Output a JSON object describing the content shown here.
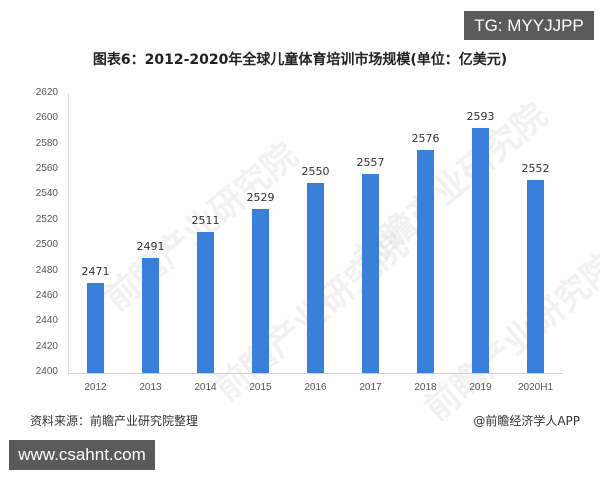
{
  "badges": {
    "top_right": "TG: MYYJJPP",
    "bottom_left": "www.csahnt.com"
  },
  "watermark": "前瞻产业研究院",
  "footer": {
    "source": "资料来源：前瞻产业研究院整理",
    "credit": "@前瞻经济学人APP"
  },
  "colors": {
    "bar": "#3a7fd9",
    "badge_bg": "#5a5a5a"
  },
  "chart_data": {
    "type": "bar",
    "title": "图表6：2012-2020年全球儿童体育培训市场规模(单位：亿美元)",
    "xlabel": "",
    "ylabel": "",
    "ylim": [
      2400,
      2620
    ],
    "yticks": [
      "2620",
      "2600",
      "2580",
      "2560",
      "2540",
      "2520",
      "2500",
      "2480",
      "2460",
      "2440",
      "2420",
      "2400"
    ],
    "categories": [
      "2012",
      "2013",
      "2014",
      "2015",
      "2016",
      "2017",
      "2018",
      "2019",
      "2020H1"
    ],
    "values": [
      2471,
      2491,
      2511,
      2529,
      2550,
      2557,
      2576,
      2593,
      2552
    ],
    "data_labels": [
      "2471",
      "2491",
      "2511",
      "2529",
      "2550",
      "2557",
      "2576",
      "2593",
      "2552"
    ],
    "grid": false,
    "legend": null
  }
}
